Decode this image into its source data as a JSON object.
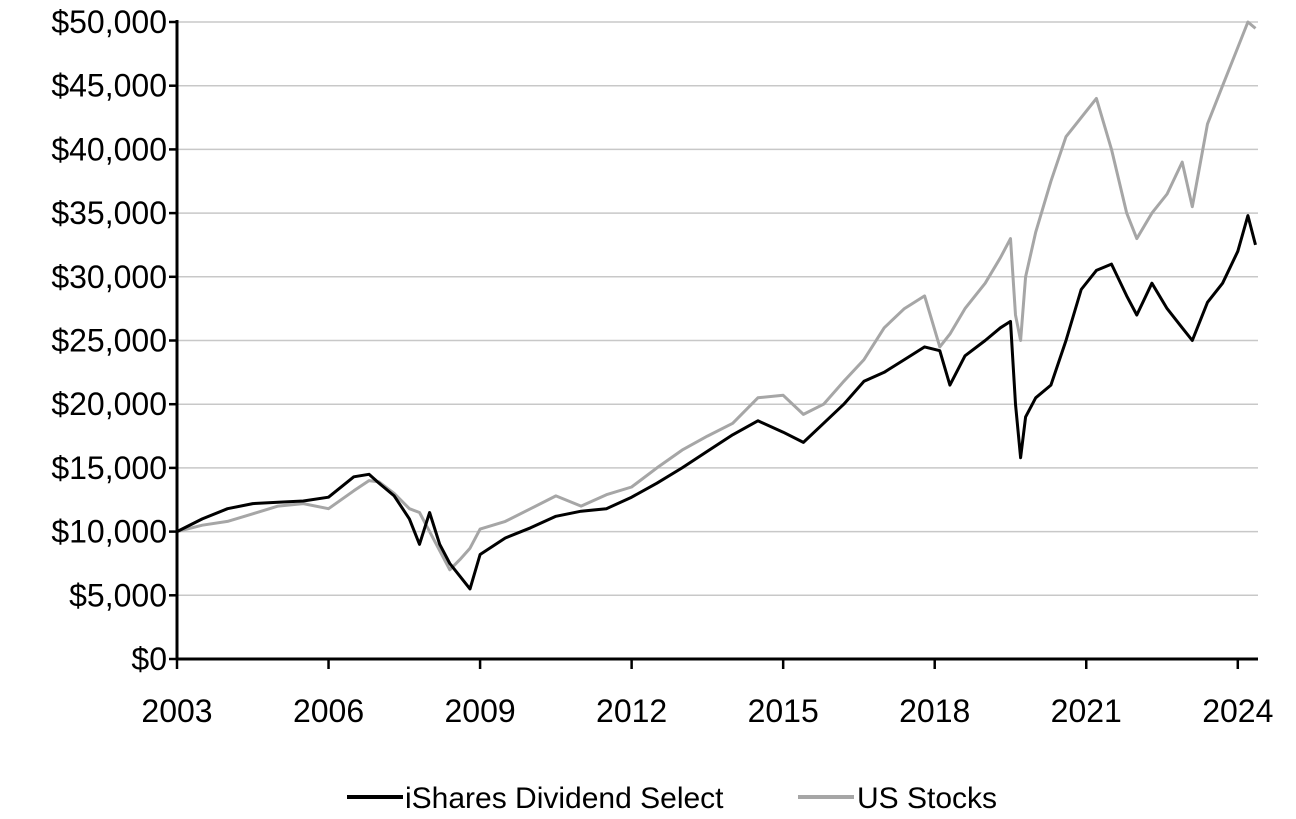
{
  "chart_data": {
    "type": "line",
    "title": "",
    "xlabel": "",
    "ylabel": "",
    "x_range": [
      2003,
      2024.4
    ],
    "y_range": [
      0,
      50000
    ],
    "grid": "horizontal",
    "legend_placement": "bottom-center",
    "x_ticks": [
      2003,
      2006,
      2009,
      2012,
      2015,
      2018,
      2021,
      2024
    ],
    "x_tick_labels": [
      "2003",
      "2006",
      "2009",
      "2012",
      "2015",
      "2018",
      "2021",
      "2024"
    ],
    "y_ticks": [
      0,
      5000,
      10000,
      15000,
      20000,
      25000,
      30000,
      35000,
      40000,
      45000,
      50000
    ],
    "y_tick_labels": [
      "$0",
      "$5,000",
      "$10,000",
      "$15,000",
      "$20,000",
      "$25,000",
      "$30,000",
      "$35,000",
      "$40,000",
      "$45,000",
      "$50,000"
    ],
    "series": [
      {
        "name": "iShares Dividend Select",
        "color": "#000000",
        "points": [
          [
            2003.0,
            10000
          ],
          [
            2003.5,
            11000
          ],
          [
            2004.0,
            11800
          ],
          [
            2004.5,
            12200
          ],
          [
            2005.0,
            12300
          ],
          [
            2005.5,
            12400
          ],
          [
            2006.0,
            12700
          ],
          [
            2006.5,
            14300
          ],
          [
            2006.8,
            14500
          ],
          [
            2007.0,
            13800
          ],
          [
            2007.3,
            12800
          ],
          [
            2007.6,
            11000
          ],
          [
            2007.8,
            9000
          ],
          [
            2008.0,
            11500
          ],
          [
            2008.2,
            9000
          ],
          [
            2008.4,
            7500
          ],
          [
            2008.6,
            6500
          ],
          [
            2008.8,
            5500
          ],
          [
            2009.0,
            8200
          ],
          [
            2009.5,
            9500
          ],
          [
            2010.0,
            10300
          ],
          [
            2010.5,
            11200
          ],
          [
            2011.0,
            11600
          ],
          [
            2011.5,
            11800
          ],
          [
            2012.0,
            12700
          ],
          [
            2012.5,
            13800
          ],
          [
            2013.0,
            15000
          ],
          [
            2013.5,
            16300
          ],
          [
            2014.0,
            17600
          ],
          [
            2014.5,
            18700
          ],
          [
            2015.0,
            17800
          ],
          [
            2015.4,
            17000
          ],
          [
            2015.8,
            18500
          ],
          [
            2016.2,
            20000
          ],
          [
            2016.6,
            21800
          ],
          [
            2017.0,
            22500
          ],
          [
            2017.4,
            23500
          ],
          [
            2017.8,
            24500
          ],
          [
            2018.1,
            24200
          ],
          [
            2018.3,
            21500
          ],
          [
            2018.6,
            23800
          ],
          [
            2019.0,
            25000
          ],
          [
            2019.3,
            26000
          ],
          [
            2019.5,
            26500
          ],
          [
            2019.6,
            20000
          ],
          [
            2019.7,
            15800
          ],
          [
            2019.8,
            19000
          ],
          [
            2020.0,
            20500
          ],
          [
            2020.3,
            21500
          ],
          [
            2020.6,
            25000
          ],
          [
            2020.9,
            29000
          ],
          [
            2021.2,
            30500
          ],
          [
            2021.5,
            31000
          ],
          [
            2021.8,
            28500
          ],
          [
            2022.0,
            27000
          ],
          [
            2022.3,
            29500
          ],
          [
            2022.6,
            27500
          ],
          [
            2022.9,
            26000
          ],
          [
            2023.1,
            25000
          ],
          [
            2023.4,
            28000
          ],
          [
            2023.7,
            29500
          ],
          [
            2024.0,
            32000
          ],
          [
            2024.2,
            34800
          ],
          [
            2024.35,
            32500
          ]
        ]
      },
      {
        "name": "US Stocks",
        "color": "#a6a6a6",
        "points": [
          [
            2003.0,
            10000
          ],
          [
            2003.5,
            10500
          ],
          [
            2004.0,
            10800
          ],
          [
            2004.5,
            11400
          ],
          [
            2005.0,
            12000
          ],
          [
            2005.5,
            12200
          ],
          [
            2006.0,
            11800
          ],
          [
            2006.5,
            13200
          ],
          [
            2006.8,
            14000
          ],
          [
            2007.0,
            13900
          ],
          [
            2007.3,
            13000
          ],
          [
            2007.6,
            11800
          ],
          [
            2007.8,
            11500
          ],
          [
            2008.0,
            10000
          ],
          [
            2008.2,
            8500
          ],
          [
            2008.4,
            7000
          ],
          [
            2008.6,
            7800
          ],
          [
            2008.8,
            8700
          ],
          [
            2009.0,
            10200
          ],
          [
            2009.5,
            10800
          ],
          [
            2010.0,
            11800
          ],
          [
            2010.5,
            12800
          ],
          [
            2011.0,
            12000
          ],
          [
            2011.5,
            12900
          ],
          [
            2012.0,
            13500
          ],
          [
            2012.5,
            15000
          ],
          [
            2013.0,
            16400
          ],
          [
            2013.5,
            17500
          ],
          [
            2014.0,
            18500
          ],
          [
            2014.5,
            20500
          ],
          [
            2015.0,
            20700
          ],
          [
            2015.4,
            19200
          ],
          [
            2015.8,
            20000
          ],
          [
            2016.2,
            21800
          ],
          [
            2016.6,
            23500
          ],
          [
            2017.0,
            26000
          ],
          [
            2017.4,
            27500
          ],
          [
            2017.8,
            28500
          ],
          [
            2018.1,
            24500
          ],
          [
            2018.3,
            25500
          ],
          [
            2018.6,
            27500
          ],
          [
            2019.0,
            29500
          ],
          [
            2019.3,
            31500
          ],
          [
            2019.5,
            33000
          ],
          [
            2019.6,
            27000
          ],
          [
            2019.7,
            25000
          ],
          [
            2019.8,
            30000
          ],
          [
            2020.0,
            33500
          ],
          [
            2020.3,
            37500
          ],
          [
            2020.6,
            41000
          ],
          [
            2020.9,
            42500
          ],
          [
            2021.2,
            44000
          ],
          [
            2021.5,
            40000
          ],
          [
            2021.8,
            35000
          ],
          [
            2022.0,
            33000
          ],
          [
            2022.3,
            35000
          ],
          [
            2022.6,
            36500
          ],
          [
            2022.9,
            39000
          ],
          [
            2023.1,
            35500
          ],
          [
            2023.4,
            42000
          ],
          [
            2023.7,
            45000
          ],
          [
            2024.0,
            48000
          ],
          [
            2024.2,
            50000
          ],
          [
            2024.35,
            49500
          ]
        ]
      }
    ]
  }
}
